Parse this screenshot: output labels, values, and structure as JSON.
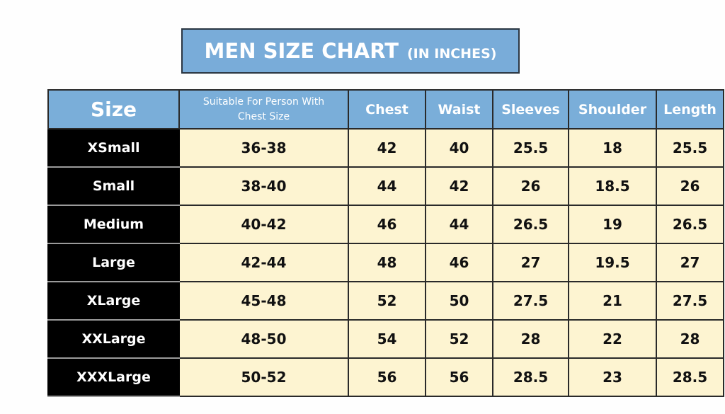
{
  "title": {
    "main": "MEN SIZE CHART",
    "sub": "(IN INCHES)"
  },
  "colors": {
    "header": "#7aaed9",
    "cells": "#fdf4d1",
    "size_column": "#000000"
  },
  "chart_data": {
    "type": "table",
    "title": "MEN SIZE CHART (IN INCHES)",
    "columns": [
      "Size",
      "Suitable For Person With Chest Size",
      "Chest",
      "Waist",
      "Sleeves",
      "Shoulder",
      "Length"
    ],
    "rows": [
      [
        "XSmall",
        "36-38",
        "42",
        "40",
        "25.5",
        "18",
        "25.5"
      ],
      [
        "Small",
        "38-40",
        "44",
        "42",
        "26",
        "18.5",
        "26"
      ],
      [
        "Medium",
        "40-42",
        "46",
        "44",
        "26.5",
        "19",
        "26.5"
      ],
      [
        "Large",
        "42-44",
        "48",
        "46",
        "27",
        "19.5",
        "27"
      ],
      [
        "XLarge",
        "45-48",
        "52",
        "50",
        "27.5",
        "21",
        "27.5"
      ],
      [
        "XXLarge",
        "48-50",
        "54",
        "52",
        "28",
        "22",
        "28"
      ],
      [
        "XXXLarge",
        "50-52",
        "56",
        "56",
        "28.5",
        "23",
        "28.5"
      ]
    ]
  }
}
